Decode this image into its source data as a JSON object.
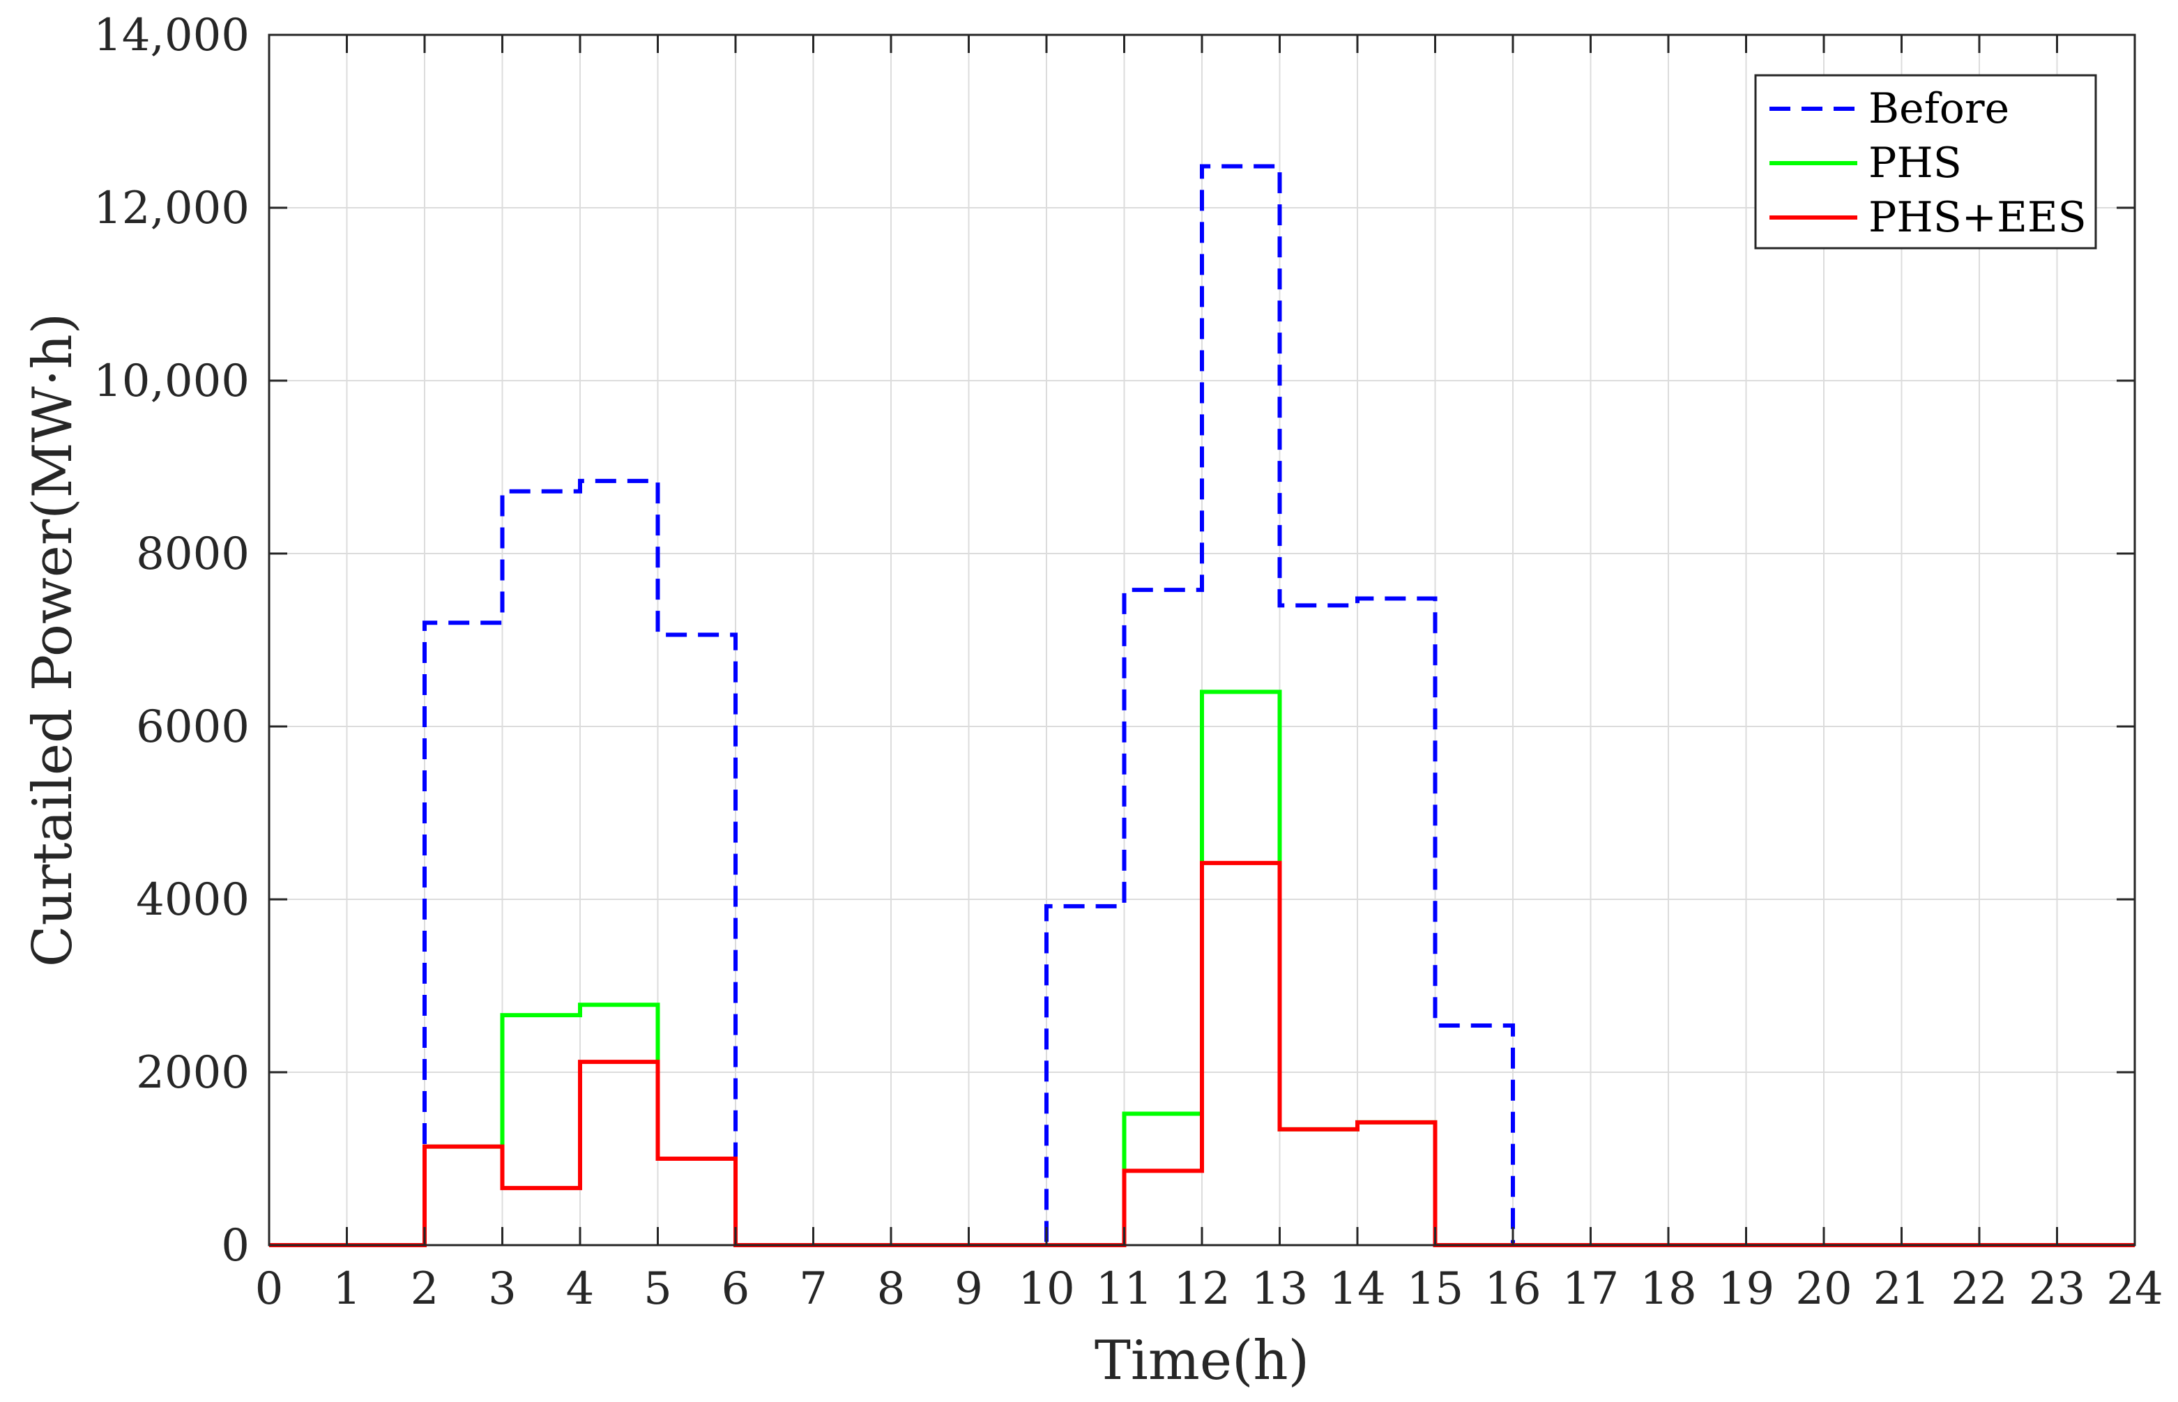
{
  "chart_data": {
    "type": "line",
    "step": true,
    "xlabel": "Time(h)",
    "ylabel": "Curtailed Power(MW·h)",
    "xlim": [
      0,
      24
    ],
    "ylim": [
      0,
      14000
    ],
    "x_ticks": [
      0,
      1,
      2,
      3,
      4,
      5,
      6,
      7,
      8,
      9,
      10,
      11,
      12,
      13,
      14,
      15,
      16,
      17,
      18,
      19,
      20,
      21,
      22,
      23,
      24
    ],
    "y_ticks": [
      0,
      2000,
      4000,
      6000,
      8000,
      10000,
      12000,
      14000
    ],
    "y_tick_labels": [
      "0",
      "2000",
      "4000",
      "6000",
      "8000",
      "10,000",
      "12,000",
      "14,000"
    ],
    "grid": true,
    "legend_position": "top-right",
    "x": [
      0,
      1,
      2,
      3,
      4,
      5,
      6,
      7,
      8,
      9,
      10,
      11,
      12,
      13,
      14,
      15,
      16,
      17,
      18,
      19,
      20,
      21,
      22,
      23
    ],
    "series": [
      {
        "name": "Before",
        "color": "#0000ff",
        "dash": true,
        "values": [
          0,
          0,
          7200,
          8720,
          8840,
          7060,
          0,
          0,
          0,
          0,
          3920,
          7580,
          12480,
          7400,
          7480,
          2540,
          0,
          0,
          0,
          0,
          0,
          0,
          0,
          0
        ]
      },
      {
        "name": "PHS",
        "color": "#00ff00",
        "dash": false,
        "values": [
          0,
          0,
          1140,
          2660,
          2780,
          1000,
          0,
          0,
          0,
          0,
          0,
          1520,
          6400,
          1340,
          1420,
          0,
          0,
          0,
          0,
          0,
          0,
          0,
          0,
          0
        ]
      },
      {
        "name": "PHS+EES",
        "color": "#ff0000",
        "dash": false,
        "values": [
          0,
          0,
          1140,
          660,
          2120,
          1000,
          0,
          0,
          0,
          0,
          0,
          860,
          4420,
          1340,
          1420,
          0,
          0,
          0,
          0,
          0,
          0,
          0,
          0,
          0
        ]
      }
    ]
  }
}
